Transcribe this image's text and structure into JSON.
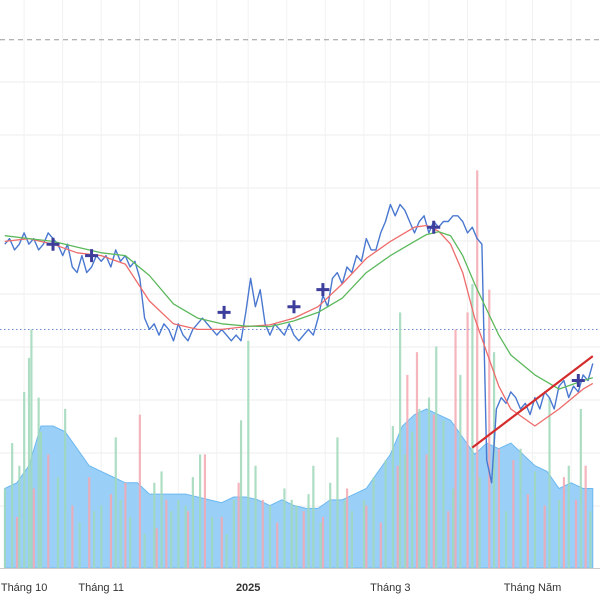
{
  "chart_data": {
    "type": "line",
    "title": "",
    "xlabel": "",
    "ylabel": "",
    "x_ticks": [
      {
        "label": "Tháng 10",
        "day": 8,
        "bold": false
      },
      {
        "label": "Tháng 11",
        "day": 40,
        "bold": false
      },
      {
        "label": "2025",
        "day": 101,
        "bold": true
      },
      {
        "label": "Tháng 3",
        "day": 160,
        "bold": false
      },
      {
        "label": "Tháng Năm",
        "day": 219,
        "bold": false
      }
    ],
    "grid": true,
    "y_range": [
      0,
      100
    ],
    "reference_lines": [
      {
        "y": 93,
        "style": "dashed",
        "color": "#9a9a9a"
      },
      {
        "y": 42,
        "style": "dotted",
        "color": "#6a8fd8"
      }
    ],
    "series": [
      {
        "kind": "price",
        "color": "#4a78d0",
        "x": [
          0,
          2,
          4,
          6,
          8,
          10,
          12,
          14,
          16,
          18,
          20,
          22,
          24,
          26,
          28,
          30,
          32,
          34,
          36,
          38,
          40,
          42,
          44,
          46,
          48,
          50,
          52,
          54,
          56,
          58,
          60,
          62,
          64,
          66,
          68,
          70,
          72,
          74,
          76,
          78,
          80,
          82,
          84,
          86,
          88,
          90,
          92,
          94,
          96,
          98,
          100,
          102,
          104,
          106,
          108,
          110,
          112,
          114,
          116,
          118,
          120,
          122,
          124,
          126,
          128,
          130,
          132,
          134,
          136,
          138,
          140,
          142,
          144,
          146,
          148,
          150,
          152,
          154,
          156,
          158,
          160,
          162,
          164,
          166,
          168,
          170,
          172,
          174,
          176,
          178,
          180,
          182,
          184,
          186,
          188,
          190,
          192,
          194,
          196,
          198,
          200,
          202,
          204,
          206,
          208,
          210,
          212,
          214,
          216,
          218,
          220,
          222,
          224,
          226,
          228,
          230,
          232,
          234,
          236,
          238,
          240,
          242,
          244
        ],
        "y": [
          57,
          58,
          56,
          57,
          59,
          57,
          58,
          56,
          57,
          59,
          58,
          57,
          55,
          57,
          53,
          52,
          55,
          52,
          53,
          55,
          54,
          55,
          53,
          56,
          54,
          55,
          53,
          54,
          51,
          44,
          42,
          43,
          41,
          43,
          42,
          40,
          43,
          41,
          40,
          42,
          43,
          44,
          43,
          42,
          41,
          42,
          41,
          40,
          41,
          40,
          45,
          51,
          46,
          49,
          43,
          41,
          43,
          42,
          41,
          43,
          41,
          40,
          41,
          42,
          41,
          44,
          48,
          46,
          51,
          52,
          50,
          53,
          52,
          55,
          54,
          58,
          56,
          56,
          59,
          61,
          64,
          62,
          64,
          63,
          61,
          59,
          61,
          62,
          59,
          61,
          60,
          61,
          61,
          62,
          62,
          61,
          59,
          60,
          58,
          57,
          19,
          15,
          28,
          30,
          29,
          31,
          30,
          28,
          29,
          27,
          30,
          28,
          31,
          30,
          28,
          32,
          33,
          30,
          32,
          31,
          34,
          33,
          36
        ],
        "markers": [
          {
            "x": 20,
            "y": 57
          },
          {
            "x": 36,
            "y": 55
          },
          {
            "x": 91,
            "y": 45
          },
          {
            "x": 120,
            "y": 46
          },
          {
            "x": 132,
            "y": 49
          },
          {
            "x": 178,
            "y": 60
          },
          {
            "x": 238,
            "y": 33
          }
        ],
        "marker_color": "#3d3d9c"
      },
      {
        "kind": "moving-average",
        "color": "#ee6b6b",
        "x": [
          0,
          10,
          20,
          30,
          40,
          50,
          60,
          70,
          80,
          90,
          100,
          110,
          120,
          130,
          140,
          150,
          160,
          170,
          175,
          180,
          185,
          190,
          195,
          200,
          205,
          210,
          220,
          230,
          240,
          244
        ],
        "y": [
          57.5,
          58,
          57,
          55.5,
          55,
          53.5,
          47,
          43,
          42,
          42,
          42.5,
          42.8,
          44,
          46,
          50,
          54.5,
          57.5,
          60,
          60.3,
          59.3,
          57,
          52,
          44,
          38,
          32,
          28,
          25,
          28,
          31.5,
          32.5
        ]
      },
      {
        "kind": "moving-average",
        "color": "#5cb85c",
        "x": [
          0,
          10,
          20,
          30,
          40,
          50,
          60,
          70,
          80,
          90,
          100,
          110,
          120,
          130,
          140,
          150,
          160,
          170,
          175,
          180,
          185,
          190,
          195,
          200,
          205,
          210,
          220,
          230,
          240,
          244
        ],
        "y": [
          58.5,
          58,
          57.5,
          56.5,
          55.5,
          55,
          51.5,
          46.5,
          44,
          43,
          42.6,
          42.5,
          43.5,
          45,
          47.5,
          52,
          55,
          57.5,
          58.7,
          59.2,
          58.5,
          55,
          50,
          45.5,
          41,
          37.5,
          34,
          31.5,
          33,
          33.5
        ]
      },
      {
        "kind": "trendline",
        "color": "#d42b2b",
        "x": [
          194,
          244
        ],
        "y": [
          21.2,
          37.3
        ]
      }
    ],
    "volume": {
      "area_color": "#8fcbf7",
      "x": [
        0,
        5,
        10,
        15,
        20,
        25,
        30,
        35,
        40,
        45,
        50,
        55,
        60,
        65,
        70,
        75,
        80,
        85,
        90,
        95,
        100,
        105,
        110,
        115,
        120,
        125,
        130,
        135,
        140,
        145,
        150,
        155,
        160,
        165,
        170,
        175,
        180,
        185,
        190,
        195,
        200,
        205,
        210,
        215,
        220,
        225,
        230,
        235,
        240,
        244
      ],
      "y": [
        14,
        15,
        18,
        25,
        25,
        24,
        21,
        18,
        17,
        16,
        15,
        15,
        13,
        13,
        13,
        13,
        12.5,
        12,
        11.5,
        12.5,
        12.5,
        12,
        11,
        12,
        11,
        10.5,
        10.5,
        12,
        12,
        13,
        14,
        17,
        20,
        25,
        27,
        28,
        27,
        26,
        23,
        20,
        22,
        21,
        22,
        20,
        18,
        17,
        14,
        15,
        14,
        14
      ],
      "bars_up": {
        "color": "#9fd8ba",
        "x": [
          0,
          3,
          6,
          8,
          10,
          11,
          14,
          15,
          22,
          25,
          31,
          37,
          40,
          46,
          48,
          52,
          58,
          62,
          65,
          69,
          72,
          75,
          78,
          81,
          86,
          92,
          95,
          98,
          101,
          104,
          110,
          116,
          119,
          121,
          126,
          128,
          131,
          135,
          138,
          141,
          144,
          149,
          153,
          158,
          161,
          164,
          166,
          169,
          172,
          176,
          179,
          182,
          186,
          189,
          194,
          197,
          203,
          208,
          214,
          220,
          226,
          230,
          234,
          239,
          243
        ],
        "y": [
          14,
          22,
          18,
          31,
          37,
          42,
          30,
          24,
          16,
          28,
          8,
          10,
          11,
          23,
          12,
          9,
          6,
          15,
          17,
          10,
          12,
          11,
          16,
          20,
          9,
          6,
          12,
          26,
          40,
          18,
          11,
          14,
          12,
          11,
          13,
          18,
          8,
          15,
          23,
          12,
          10,
          12,
          16,
          19,
          25,
          45,
          20,
          24,
          28,
          30,
          39,
          26,
          14,
          34,
          50,
          16,
          38,
          10,
          21,
          17,
          30,
          12,
          18,
          28,
          10
        ]
      },
      "bars_down": {
        "color": "#f3a8b2",
        "x": [
          5,
          12,
          18,
          28,
          35,
          44,
          50,
          56,
          63,
          67,
          76,
          83,
          90,
          97,
          107,
          113,
          124,
          132,
          142,
          150,
          156,
          163,
          167,
          171,
          175,
          178,
          184,
          187,
          192,
          196,
          201,
          205,
          211,
          217,
          224,
          232,
          237,
          241
        ],
        "y": [
          9,
          14,
          20,
          11,
          16,
          13,
          15,
          27,
          7,
          12,
          10,
          20,
          9,
          15,
          12,
          8,
          10,
          9,
          14,
          11,
          8,
          18,
          34,
          38,
          20,
          27,
          10,
          42,
          45,
          70,
          49,
          21,
          19,
          13,
          11,
          16,
          12,
          18
        ]
      }
    }
  }
}
